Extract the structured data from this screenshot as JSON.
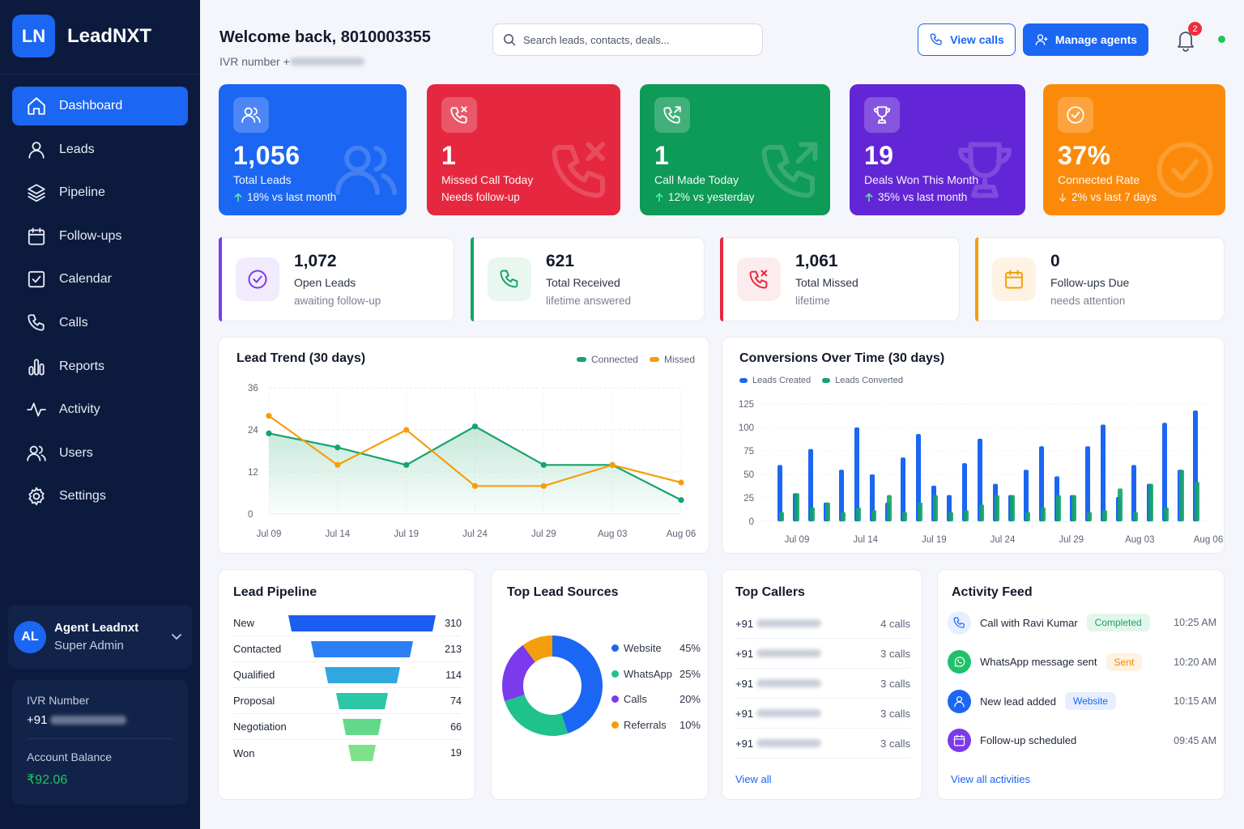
{
  "app": {
    "logo_initials": "LN",
    "name": "LeadNXT"
  },
  "nav": [
    {
      "label": "Dashboard",
      "icon": "home-icon",
      "active": true
    },
    {
      "label": "Leads",
      "icon": "user-icon"
    },
    {
      "label": "Pipeline",
      "icon": "layers-icon"
    },
    {
      "label": "Follow-ups",
      "icon": "calendar-icon"
    },
    {
      "label": "Calendar",
      "icon": "check-square-icon"
    },
    {
      "label": "Calls",
      "icon": "phone-icon"
    },
    {
      "label": "Reports",
      "icon": "bar-chart-icon"
    },
    {
      "label": "Activity",
      "icon": "activity-icon"
    },
    {
      "label": "Users",
      "icon": "users-icon"
    },
    {
      "label": "Settings",
      "icon": "gear-icon"
    }
  ],
  "profile": {
    "initials": "AL",
    "name": "Agent Leadnxt",
    "role": "Super Admin"
  },
  "balance_box": {
    "ivr_label": "IVR Number",
    "ivr_prefix": "+91",
    "balance_label": "Account Balance",
    "balance": "₹92.06"
  },
  "header": {
    "welcome": "Welcome back, 8010003355",
    "ivr_label": "IVR number +",
    "search_placeholder": "Search leads, contacts, deals...",
    "view_calls": "View calls",
    "manage_agents": "Manage agents",
    "notification_count": "2"
  },
  "kpis": [
    {
      "value": "1,056",
      "label": "Total Leads",
      "sub": "18% vs last month",
      "trend": "up",
      "color": "#1b66f2"
    },
    {
      "value": "1",
      "label": "Missed Call Today",
      "sub": "Needs follow-up",
      "trend": "none",
      "color": "#e5283f"
    },
    {
      "value": "1",
      "label": "Call Made Today",
      "sub": "12% vs yesterday",
      "trend": "up",
      "color": "#0e9a57"
    },
    {
      "value": "19",
      "label": "Deals Won This Month",
      "sub": "35% vs last month",
      "trend": "up",
      "color": "#6326d6"
    },
    {
      "value": "37%",
      "label": "Connected Rate",
      "sub": "2% vs last 7 days",
      "trend": "down",
      "color": "#fb8a0a"
    }
  ],
  "stats": [
    {
      "value": "1,072",
      "label": "Open Leads",
      "sub": "awaiting follow-up",
      "color": "#7c3aed",
      "bg": "#f1ebfd"
    },
    {
      "value": "621",
      "label": "Total Received",
      "sub": "lifetime answered",
      "color": "#16a36a",
      "bg": "#e8f7ef"
    },
    {
      "value": "1,061",
      "label": "Total Missed",
      "sub": "lifetime",
      "color": "#e5283f",
      "bg": "#fdecee"
    },
    {
      "value": "0",
      "label": "Follow-ups Due",
      "sub": "needs attention",
      "color": "#f59e0b",
      "bg": "#fef3e2"
    }
  ],
  "lead_trend": {
    "title": "Lead Trend (30 days)",
    "legend": [
      "Connected",
      "Missed"
    ],
    "chart_data": {
      "type": "line",
      "title": "Lead Trend (30 days)",
      "x": [
        "Jul 09",
        "Jul 14",
        "Jul 19",
        "Jul 24",
        "Jul 29",
        "Aug 03",
        "Aug 06"
      ],
      "yticks": [
        0,
        12,
        24,
        36
      ],
      "ylim": [
        0,
        36
      ],
      "series": [
        {
          "name": "Connected",
          "color": "#16a36a",
          "values": [
            23,
            19,
            14,
            25,
            14,
            14,
            4
          ]
        },
        {
          "name": "Missed",
          "color": "#f59e0b",
          "values": [
            28,
            14,
            24,
            8,
            8,
            14,
            9
          ]
        }
      ]
    }
  },
  "conversions": {
    "title": "Conversions Over Time (30 days)",
    "legend": [
      "Leads Created",
      "Leads Converted"
    ],
    "chart_data": {
      "type": "bar",
      "title": "Conversions Over Time (30 days)",
      "x_ticks": [
        "Jul 09",
        "Jul 14",
        "Jul 19",
        "Jul 24",
        "Jul 29",
        "Aug 03",
        "Aug 06"
      ],
      "yticks": [
        0,
        25,
        50,
        75,
        100,
        125
      ],
      "ylim": [
        0,
        125
      ],
      "series": [
        {
          "name": "Leads Created",
          "color": "#1b66f2",
          "values": [
            60,
            30,
            77,
            20,
            55,
            100,
            50,
            20,
            68,
            93,
            38,
            28,
            62,
            88,
            40,
            28,
            55,
            80,
            48,
            28,
            80,
            103,
            26,
            60,
            40,
            105,
            55,
            118
          ]
        },
        {
          "name": "Leads Converted",
          "color": "#16a36a",
          "values": [
            10,
            30,
            15,
            20,
            10,
            15,
            12,
            28,
            10,
            20,
            28,
            10,
            12,
            18,
            28,
            28,
            10,
            15,
            28,
            28,
            10,
            12,
            35,
            10,
            40,
            15,
            55,
            42
          ]
        }
      ]
    }
  },
  "pipeline": {
    "title": "Lead Pipeline",
    "stages": [
      {
        "name": "New",
        "value": 310
      },
      {
        "name": "Contacted",
        "value": 213
      },
      {
        "name": "Qualified",
        "value": 114
      },
      {
        "name": "Proposal",
        "value": 74
      },
      {
        "name": "Negotiation",
        "value": 66
      },
      {
        "name": "Won",
        "value": 19
      }
    ]
  },
  "sources": {
    "title": "Top Lead Sources",
    "chart_data": {
      "type": "pie",
      "labels": [
        "Website",
        "WhatsApp",
        "Calls",
        "Referrals"
      ],
      "values": [
        45,
        25,
        20,
        10
      ],
      "pct_labels": [
        "45%",
        "25%",
        "20%",
        "10%"
      ],
      "colors": [
        "#1b66f2",
        "#1fc28a",
        "#7c3aed",
        "#f59e0b"
      ]
    }
  },
  "callers": {
    "title": "Top Callers",
    "prefix": "+91",
    "rows": [
      "4 calls",
      "3 calls",
      "3 calls",
      "3 calls",
      "3 calls"
    ],
    "view_all": "View all"
  },
  "activity": {
    "title": "Activity Feed",
    "items": [
      {
        "text": "Call with Ravi Kumar",
        "badge": "Completed",
        "time": "10:25 AM",
        "icon": "phone-icon",
        "color": "#1b66f2",
        "bg": "#e7effe",
        "badge_color": "#16a36a",
        "badge_bg": "#e3f6ec"
      },
      {
        "text": "WhatsApp message sent",
        "badge": "Sent",
        "time": "10:20 AM",
        "icon": "whatsapp-icon",
        "color": "#ffffff",
        "bg": "#1fc26a",
        "badge_color": "#e88a0c",
        "badge_bg": "#fef2e0"
      },
      {
        "text": "New lead added",
        "badge": "Website",
        "time": "10:15 AM",
        "icon": "user-icon",
        "color": "#ffffff",
        "bg": "#1b66f2",
        "badge_color": "#1b66f2",
        "badge_bg": "#e7effe"
      },
      {
        "text": "Follow-up scheduled",
        "badge": "",
        "time": "09:45 AM",
        "icon": "calendar-icon",
        "color": "#ffffff",
        "bg": "#7c3aed",
        "badge_color": "",
        "badge_bg": ""
      }
    ],
    "view_all": "View all activities"
  }
}
